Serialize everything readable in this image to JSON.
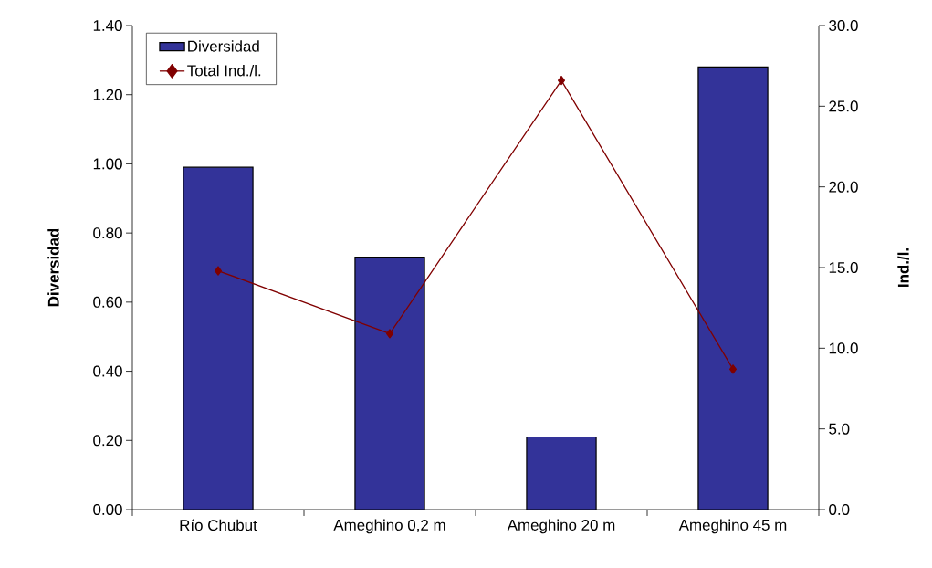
{
  "chart_data": {
    "type": "bar",
    "categories": [
      "Río Chubut",
      "Ameghino 0,2 m",
      "Ameghino 20 m",
      "Ameghino 45 m"
    ],
    "ylabel": "Diversidad",
    "y2label": "Ind./l.",
    "ylim": [
      0,
      1.4
    ],
    "yticks": [
      {
        "value": 0,
        "label": "0.00"
      },
      {
        "value": 0.2,
        "label": "0.20"
      },
      {
        "value": 0.4,
        "label": "0.40"
      },
      {
        "value": 0.6,
        "label": "0.60"
      },
      {
        "value": 0.8,
        "label": "0.80"
      },
      {
        "value": 1.0,
        "label": "1.00"
      },
      {
        "value": 1.2,
        "label": "1.20"
      },
      {
        "value": 1.4,
        "label": "1.40"
      }
    ],
    "y2lim": [
      0,
      30
    ],
    "y2ticks": [
      {
        "value": 0,
        "label": "0.0"
      },
      {
        "value": 5,
        "label": "5.0"
      },
      {
        "value": 10,
        "label": "10.0"
      },
      {
        "value": 15,
        "label": "15.0"
      },
      {
        "value": 20,
        "label": "20.0"
      },
      {
        "value": 25,
        "label": "25.0"
      },
      {
        "value": 30,
        "label": "30.0"
      }
    ],
    "series": [
      {
        "name": "Diversidad",
        "color": "#333399",
        "values": [
          0.99,
          0.73,
          0.21,
          1.28
        ]
      },
      {
        "name": "Total Ind./l.",
        "type": "line",
        "axis": "y2",
        "color": "#800000",
        "values": [
          14.8,
          10.9,
          26.6,
          8.7
        ]
      }
    ],
    "marker": "diamond",
    "legend": "top left",
    "grid": false
  }
}
